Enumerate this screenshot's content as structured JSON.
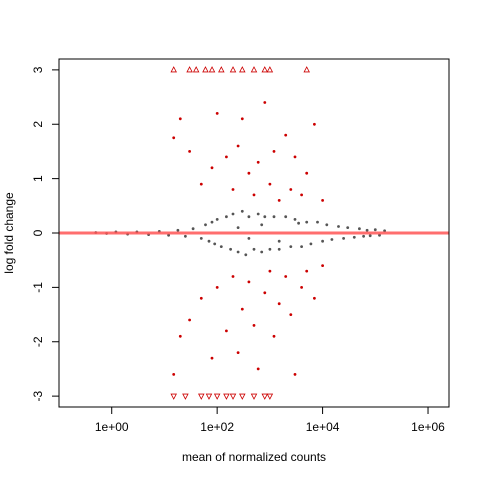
{
  "chart_data": {
    "type": "scatter",
    "title": "",
    "xlabel": "mean of normalized counts",
    "ylabel": "log fold change",
    "x_scale": "log10",
    "xlim": [
      0.1,
      2500000
    ],
    "ylim": [
      -3.2,
      3.2
    ],
    "x_ticks": [
      {
        "value": 1,
        "label": "1e+00"
      },
      {
        "value": 100,
        "label": "1e+02"
      },
      {
        "value": 10000,
        "label": "1e+04"
      },
      {
        "value": 1000000,
        "label": "1e+06"
      }
    ],
    "y_ticks": [
      {
        "value": -3,
        "label": "-3"
      },
      {
        "value": -2,
        "label": "-2"
      },
      {
        "value": -1,
        "label": "-1"
      },
      {
        "value": 0,
        "label": "0"
      },
      {
        "value": 1,
        "label": "1"
      },
      {
        "value": 2,
        "label": "2"
      },
      {
        "value": 3,
        "label": "3"
      }
    ],
    "reference_line": {
      "y": 0,
      "color": "#ff5555"
    },
    "colors": {
      "not_significant": "#555555",
      "significant": "#cc0000"
    },
    "series": [
      {
        "points": [
          [
            0.5,
            0.01
          ],
          [
            0.8,
            -0.01
          ],
          [
            1.2,
            0.02
          ],
          [
            2,
            -0.02
          ],
          [
            3,
            0.02
          ],
          [
            5,
            -0.03
          ],
          [
            8,
            0.03
          ],
          [
            12,
            -0.04
          ],
          [
            18,
            0.05
          ],
          [
            25,
            -0.06
          ],
          [
            35,
            0.08
          ],
          [
            50,
            -0.1
          ],
          [
            60,
            0.15
          ],
          [
            70,
            -0.15
          ],
          [
            80,
            0.2
          ],
          [
            90,
            -0.2
          ],
          [
            100,
            0.25
          ],
          [
            120,
            -0.25
          ],
          [
            150,
            0.3
          ],
          [
            180,
            -0.3
          ],
          [
            200,
            0.35
          ],
          [
            250,
            -0.35
          ],
          [
            300,
            0.4
          ],
          [
            350,
            -0.4
          ],
          [
            400,
            0.3
          ],
          [
            500,
            -0.3
          ],
          [
            600,
            0.35
          ],
          [
            700,
            -0.35
          ],
          [
            800,
            0.3
          ],
          [
            1000,
            -0.3
          ],
          [
            1200,
            0.3
          ],
          [
            1500,
            -0.3
          ],
          [
            2000,
            0.3
          ],
          [
            2500,
            -0.25
          ],
          [
            3000,
            0.25
          ],
          [
            4000,
            -0.25
          ],
          [
            5000,
            0.2
          ],
          [
            6000,
            -0.2
          ],
          [
            8000,
            0.2
          ],
          [
            10000,
            -0.15
          ],
          [
            12000,
            0.15
          ],
          [
            15000,
            -0.12
          ],
          [
            20000,
            0.12
          ],
          [
            25000,
            -0.1
          ],
          [
            30000,
            0.1
          ],
          [
            40000,
            -0.08
          ],
          [
            50000,
            0.08
          ],
          [
            60000,
            -0.06
          ],
          [
            70000,
            0.05
          ],
          [
            80000,
            -0.05
          ],
          [
            100000,
            0.06
          ],
          [
            120000,
            -0.04
          ],
          [
            150000,
            0.04
          ],
          [
            250,
            0.1
          ],
          [
            400,
            -0.1
          ],
          [
            700,
            0.15
          ],
          [
            1500,
            -0.15
          ],
          [
            3500,
            0.18
          ]
        ]
      },
      {
        "points": [
          [
            15,
            1.75
          ],
          [
            20,
            2.1
          ],
          [
            30,
            1.5
          ],
          [
            50,
            0.9
          ],
          [
            80,
            1.2
          ],
          [
            100,
            2.2
          ],
          [
            150,
            1.4
          ],
          [
            200,
            0.8
          ],
          [
            250,
            1.6
          ],
          [
            300,
            2.1
          ],
          [
            400,
            1.1
          ],
          [
            500,
            0.7
          ],
          [
            600,
            1.3
          ],
          [
            800,
            2.4
          ],
          [
            1000,
            0.9
          ],
          [
            1200,
            1.5
          ],
          [
            1500,
            0.6
          ],
          [
            2000,
            1.8
          ],
          [
            2500,
            0.8
          ],
          [
            3000,
            1.4
          ],
          [
            4000,
            0.7
          ],
          [
            5000,
            1.1
          ],
          [
            7000,
            2.0
          ],
          [
            10000,
            0.6
          ],
          [
            15,
            -2.6
          ],
          [
            20,
            -1.9
          ],
          [
            30,
            -1.6
          ],
          [
            50,
            -1.2
          ],
          [
            80,
            -2.3
          ],
          [
            100,
            -1.0
          ],
          [
            150,
            -1.8
          ],
          [
            200,
            -0.8
          ],
          [
            250,
            -2.2
          ],
          [
            300,
            -1.4
          ],
          [
            400,
            -0.9
          ],
          [
            500,
            -1.7
          ],
          [
            600,
            -2.5
          ],
          [
            800,
            -1.1
          ],
          [
            1000,
            -0.7
          ],
          [
            1200,
            -1.9
          ],
          [
            1500,
            -1.3
          ],
          [
            2000,
            -0.8
          ],
          [
            2500,
            -1.5
          ],
          [
            3000,
            -2.6
          ],
          [
            4000,
            -1.0
          ],
          [
            5000,
            -0.7
          ],
          [
            7000,
            -1.2
          ],
          [
            10000,
            -0.6
          ]
        ]
      },
      {
        "points": [
          [
            15,
            3
          ],
          [
            30,
            3
          ],
          [
            40,
            3
          ],
          [
            60,
            3
          ],
          [
            80,
            3
          ],
          [
            120,
            3
          ],
          [
            200,
            3
          ],
          [
            300,
            3
          ],
          [
            500,
            3
          ],
          [
            800,
            3
          ],
          [
            1000,
            3
          ],
          [
            5000,
            3
          ],
          [
            15,
            -3
          ],
          [
            25,
            -3
          ],
          [
            50,
            -3
          ],
          [
            70,
            -3
          ],
          [
            100,
            -3
          ],
          [
            150,
            -3
          ],
          [
            200,
            -3
          ],
          [
            300,
            -3
          ],
          [
            500,
            -3
          ],
          [
            800,
            -3
          ],
          [
            1000,
            -3
          ]
        ]
      }
    ]
  }
}
